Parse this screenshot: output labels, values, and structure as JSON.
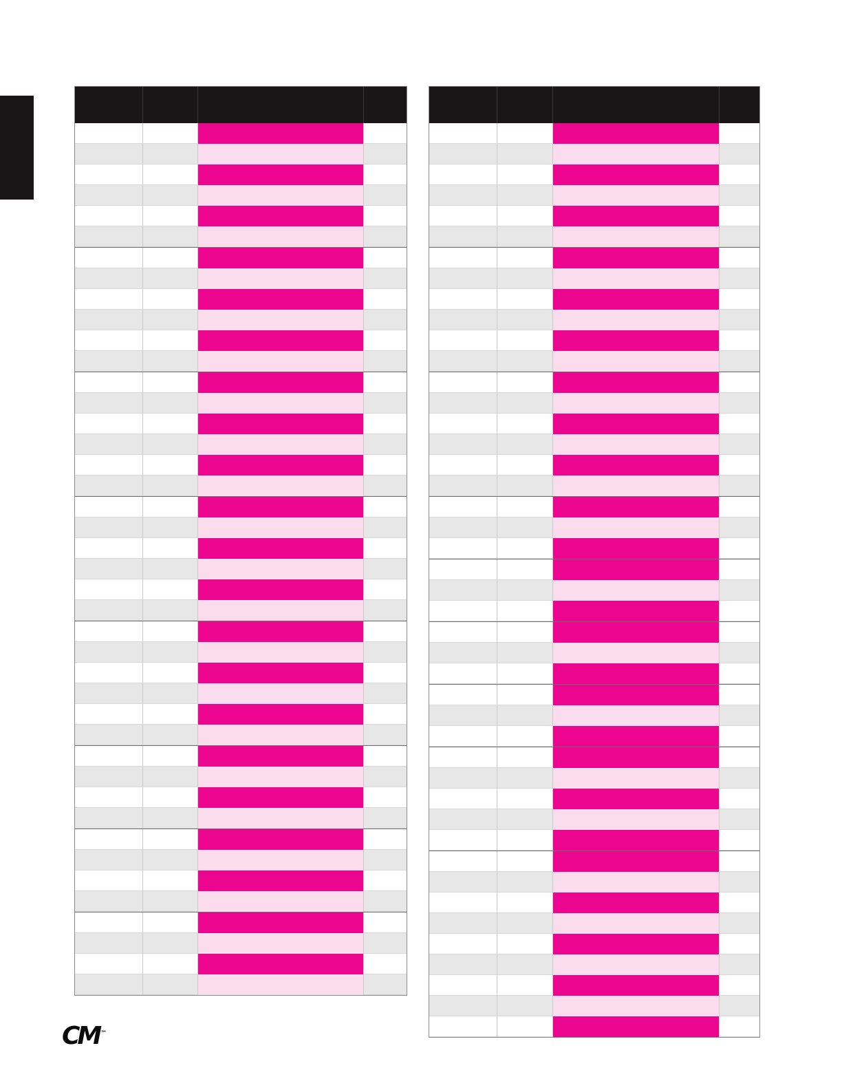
{
  "page": {
    "logo_text": "CM",
    "logo_mark": "™"
  },
  "colors": {
    "header_bg": "#1a1617",
    "magenta": "#ec068f",
    "pink": "#fadcec",
    "row_gray": "#e7e7e7",
    "row_white": "#ffffff",
    "grid_line": "#c9c9c9",
    "group_line": "#6f6f6f",
    "table_border": "#8a8a8a"
  },
  "tables": [
    {
      "id": "price-table-left",
      "columns": [
        "",
        "",
        "",
        ""
      ],
      "groups": [
        6,
        6,
        6,
        6,
        6,
        4,
        4,
        4
      ]
    },
    {
      "id": "price-table-right",
      "columns": [
        "",
        "",
        "",
        ""
      ],
      "groups": [
        6,
        6,
        6,
        3,
        3,
        3,
        3,
        5,
        9
      ]
    }
  ]
}
